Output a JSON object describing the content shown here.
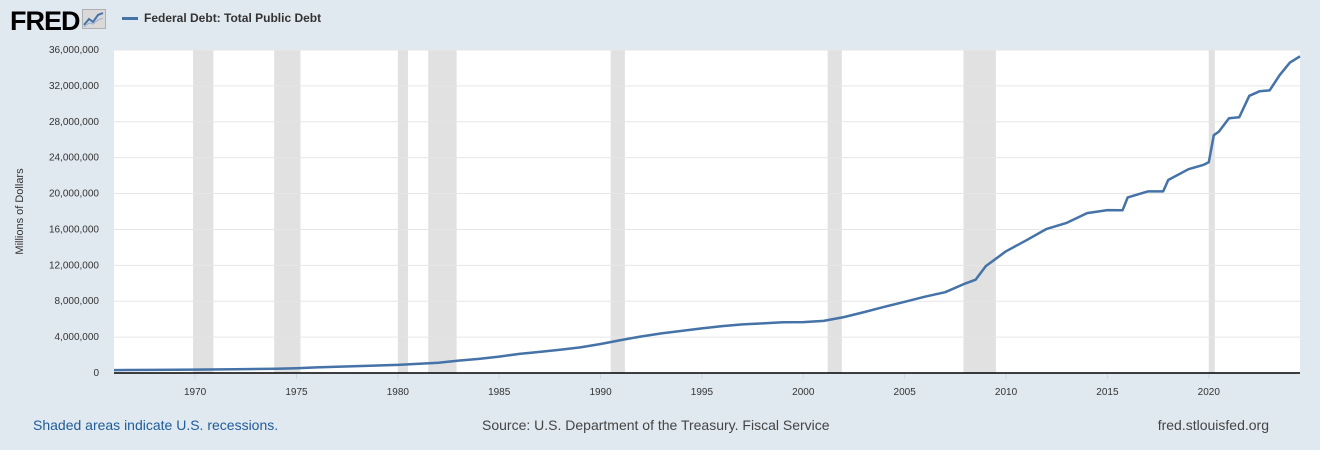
{
  "header": {
    "logo_text": "FRED",
    "logo_icon": "chart-trend-icon",
    "legend_label": "Federal Debt: Total Public Debt"
  },
  "colors": {
    "background": "#e1e9f0",
    "plot_background": "#ffffff",
    "series": "#4572a7",
    "recession": "#e1e1e1",
    "grid": "#e6e6e6"
  },
  "footer": {
    "recessions_note": "Shaded areas indicate U.S. recessions.",
    "source": "Source: U.S. Department of the Treasury. Fiscal Service",
    "site": "fred.stlouisfed.org"
  },
  "chart_data": {
    "type": "line",
    "title": "",
    "xlabel": "",
    "ylabel": "Millions of Dollars",
    "xlim": [
      1966.0,
      2024.5
    ],
    "ylim": [
      0,
      36000000
    ],
    "yticks": [
      0,
      4000000,
      8000000,
      12000000,
      16000000,
      20000000,
      24000000,
      28000000,
      32000000,
      36000000
    ],
    "ytick_labels": [
      "0",
      "4,000,000",
      "8,000,000",
      "12,000,000",
      "16,000,000",
      "20,000,000",
      "24,000,000",
      "28,000,000",
      "32,000,000",
      "36,000,000"
    ],
    "xticks": [
      1970,
      1975,
      1980,
      1985,
      1990,
      1995,
      2000,
      2005,
      2010,
      2015,
      2020
    ],
    "xtick_labels": [
      "1970",
      "1975",
      "1980",
      "1985",
      "1990",
      "1995",
      "2000",
      "2005",
      "2010",
      "2015",
      "2020"
    ],
    "grid": true,
    "legend": "top-left",
    "recessions": [
      [
        1969.9,
        1970.9
      ],
      [
        1973.9,
        1975.2
      ],
      [
        1980.0,
        1980.5
      ],
      [
        1981.5,
        1982.9
      ],
      [
        1990.5,
        1991.2
      ],
      [
        2001.2,
        2001.9
      ],
      [
        2007.9,
        2009.5
      ],
      [
        2020.0,
        2020.3
      ]
    ],
    "series": [
      {
        "name": "Federal Debt: Total Public Debt",
        "x": [
          1966.0,
          1968.0,
          1970.0,
          1972.0,
          1974.0,
          1975.0,
          1976.0,
          1978.0,
          1980.0,
          1982.0,
          1983.0,
          1984.0,
          1985.0,
          1986.0,
          1987.0,
          1988.0,
          1989.0,
          1990.0,
          1991.0,
          1992.0,
          1993.0,
          1994.0,
          1995.0,
          1996.0,
          1997.0,
          1998.0,
          1999.0,
          2000.0,
          2001.0,
          2002.0,
          2003.0,
          2004.0,
          2005.0,
          2006.0,
          2007.0,
          2008.0,
          2008.5,
          2009.0,
          2010.0,
          2011.0,
          2012.0,
          2013.0,
          2014.0,
          2015.0,
          2015.75,
          2016.0,
          2017.0,
          2017.75,
          2018.0,
          2019.0,
          2019.75,
          2020.0,
          2020.25,
          2020.5,
          2021.0,
          2021.5,
          2022.0,
          2022.5,
          2023.0,
          2023.5,
          2024.0,
          2024.5
        ],
        "values": [
          320000,
          348000,
          381000,
          427000,
          475000,
          533000,
          620000,
          772000,
          908000,
          1142000,
          1377000,
          1572000,
          1823000,
          2125000,
          2350000,
          2602000,
          2857000,
          3233000,
          3665000,
          4065000,
          4411000,
          4693000,
          4974000,
          5225000,
          5413000,
          5526000,
          5656000,
          5674000,
          5807000,
          6228000,
          6783000,
          7379000,
          7933000,
          8507000,
          9008000,
          9986000,
          10400000,
          11910000,
          13562000,
          14790000,
          16066000,
          16738000,
          17824000,
          18151000,
          18150000,
          19573000,
          20245000,
          20245000,
          21516000,
          22719000,
          23201000,
          23500000,
          26500000,
          26900000,
          28400000,
          28500000,
          30900000,
          31400000,
          31500000,
          33200000,
          34600000,
          35300000
        ]
      }
    ]
  }
}
